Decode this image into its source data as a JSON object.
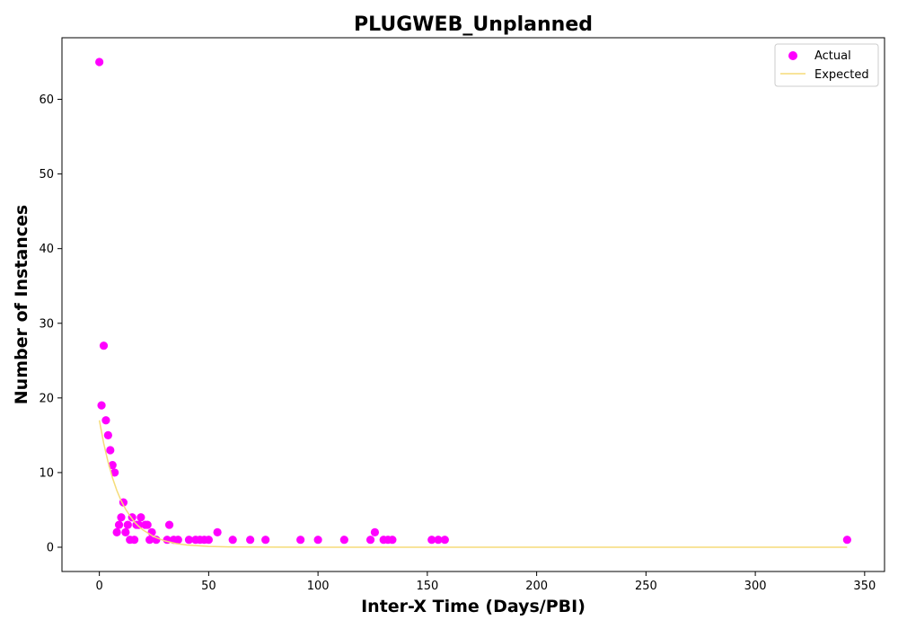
{
  "chart_data": {
    "type": "scatter",
    "title": "PLUGWEB_Unplanned",
    "xlabel": "Inter-X Time (Days/PBI)",
    "ylabel": "Number of Instances",
    "xlim": [
      -17.1,
      359.1
    ],
    "ylim": [
      -3.25,
      68.25
    ],
    "xticks": [
      0,
      50,
      100,
      150,
      200,
      250,
      300,
      350
    ],
    "yticks": [
      0,
      10,
      20,
      30,
      40,
      50,
      60
    ],
    "grid": false,
    "legend_position": "top-right",
    "series": [
      {
        "name": "Actual",
        "kind": "scatter",
        "color": "#ff00ff",
        "points": [
          [
            0,
            65
          ],
          [
            1,
            19
          ],
          [
            2,
            27
          ],
          [
            3,
            17
          ],
          [
            4,
            15
          ],
          [
            5,
            13
          ],
          [
            6,
            11
          ],
          [
            7,
            10
          ],
          [
            8,
            2
          ],
          [
            9,
            3
          ],
          [
            10,
            4
          ],
          [
            11,
            6
          ],
          [
            12,
            2
          ],
          [
            13,
            3
          ],
          [
            14,
            1
          ],
          [
            15,
            4
          ],
          [
            16,
            1
          ],
          [
            17,
            3
          ],
          [
            18,
            3
          ],
          [
            19,
            4
          ],
          [
            21,
            3
          ],
          [
            22,
            3
          ],
          [
            23,
            1
          ],
          [
            24,
            2
          ],
          [
            26,
            1
          ],
          [
            31,
            1
          ],
          [
            32,
            3
          ],
          [
            34,
            1
          ],
          [
            36,
            1
          ],
          [
            41,
            1
          ],
          [
            44,
            1
          ],
          [
            46,
            1
          ],
          [
            48,
            1
          ],
          [
            50,
            1
          ],
          [
            54,
            2
          ],
          [
            61,
            1
          ],
          [
            69,
            1
          ],
          [
            76,
            1
          ],
          [
            92,
            1
          ],
          [
            100,
            1
          ],
          [
            112,
            1
          ],
          [
            124,
            1
          ],
          [
            126,
            2
          ],
          [
            130,
            1
          ],
          [
            132,
            1
          ],
          [
            134,
            1
          ],
          [
            152,
            1
          ],
          [
            155,
            1
          ],
          [
            158,
            1
          ],
          [
            342,
            1
          ]
        ]
      },
      {
        "name": "Expected",
        "kind": "line",
        "color": "#f5dc78",
        "points": [
          [
            0,
            17.0
          ],
          [
            2,
            13.9
          ],
          [
            4,
            11.4
          ],
          [
            6,
            9.3
          ],
          [
            8,
            7.6
          ],
          [
            10,
            6.2
          ],
          [
            12,
            5.1
          ],
          [
            14,
            4.2
          ],
          [
            16,
            3.4
          ],
          [
            18,
            2.8
          ],
          [
            20,
            2.3
          ],
          [
            25,
            1.4
          ],
          [
            30,
            0.84
          ],
          [
            35,
            0.5
          ],
          [
            40,
            0.3
          ],
          [
            50,
            0.11
          ],
          [
            60,
            0.04
          ],
          [
            80,
            0.01
          ],
          [
            100,
            0.0
          ],
          [
            200,
            0.0
          ],
          [
            342,
            0.0
          ]
        ]
      }
    ]
  }
}
